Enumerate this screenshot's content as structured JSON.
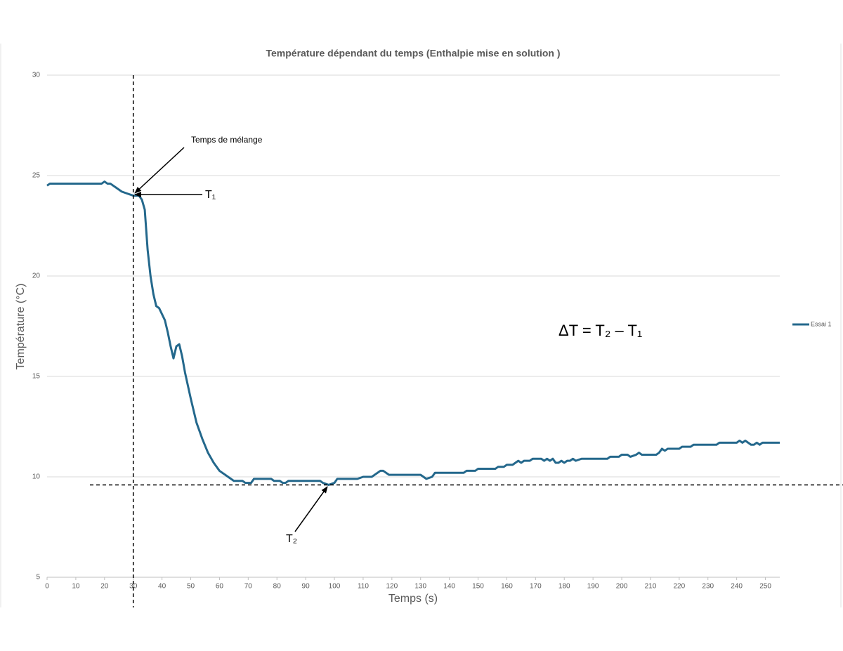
{
  "chart_data": {
    "type": "line",
    "title": "Température dépendant du temps (Enthalpie mise en solution )",
    "x_label": "Temps (s)",
    "y_label": "Température (°C)",
    "xlim": [
      0,
      255
    ],
    "ylim": [
      5,
      30
    ],
    "xticks": [
      0,
      10,
      20,
      30,
      40,
      50,
      60,
      70,
      80,
      90,
      100,
      110,
      120,
      130,
      140,
      150,
      160,
      170,
      180,
      190,
      200,
      210,
      220,
      230,
      240,
      250
    ],
    "yticks": [
      5,
      10,
      15,
      20,
      25,
      30
    ],
    "grid": true,
    "legend": "right",
    "x": [
      0,
      1,
      5,
      10,
      15,
      19,
      20,
      21,
      22,
      24,
      26,
      28,
      30,
      32,
      33,
      34,
      35,
      36,
      37,
      38,
      39,
      40,
      41,
      42,
      43,
      44,
      45,
      46,
      47,
      48,
      50,
      52,
      54,
      56,
      58,
      60,
      62,
      64,
      65,
      68,
      69,
      71,
      72,
      78,
      79,
      81,
      82,
      83,
      84,
      95,
      96,
      98,
      100,
      101,
      108,
      110,
      113,
      116,
      117,
      119,
      130,
      131,
      132,
      134,
      135,
      145,
      146,
      149,
      150,
      156,
      157,
      159,
      160,
      162,
      164,
      165,
      166,
      168,
      169,
      172,
      173,
      174,
      175,
      176,
      177,
      178,
      179,
      180,
      181,
      182,
      183,
      184,
      186,
      195,
      196,
      199,
      200,
      202,
      203,
      205,
      206,
      207,
      212,
      213,
      214,
      215,
      216,
      220,
      221,
      224,
      225,
      233,
      234,
      240,
      241,
      242,
      243,
      244,
      245,
      246,
      247,
      248,
      249,
      255
    ],
    "series": [
      {
        "name": "Essai 1",
        "color": "#24688c",
        "values": [
          24.5,
          24.6,
          24.6,
          24.6,
          24.6,
          24.6,
          24.7,
          24.6,
          24.6,
          24.4,
          24.2,
          24.1,
          24.0,
          24.0,
          23.8,
          23.3,
          21.3,
          20.0,
          19.1,
          18.5,
          18.4,
          18.1,
          17.8,
          17.2,
          16.5,
          15.9,
          16.5,
          16.6,
          16.0,
          15.2,
          13.9,
          12.7,
          11.9,
          11.2,
          10.7,
          10.3,
          10.1,
          9.9,
          9.8,
          9.8,
          9.7,
          9.7,
          9.9,
          9.9,
          9.8,
          9.8,
          9.7,
          9.7,
          9.8,
          9.8,
          9.7,
          9.6,
          9.7,
          9.9,
          9.9,
          10.0,
          10.0,
          10.3,
          10.3,
          10.1,
          10.1,
          10.0,
          9.9,
          10.0,
          10.2,
          10.2,
          10.3,
          10.3,
          10.4,
          10.4,
          10.5,
          10.5,
          10.6,
          10.6,
          10.8,
          10.7,
          10.8,
          10.8,
          10.9,
          10.9,
          10.8,
          10.9,
          10.8,
          10.9,
          10.7,
          10.7,
          10.8,
          10.7,
          10.8,
          10.8,
          10.9,
          10.8,
          10.9,
          10.9,
          11.0,
          11.0,
          11.1,
          11.1,
          11.0,
          11.1,
          11.2,
          11.1,
          11.1,
          11.2,
          11.4,
          11.3,
          11.4,
          11.4,
          11.5,
          11.5,
          11.6,
          11.6,
          11.7,
          11.7,
          11.8,
          11.7,
          11.8,
          11.7,
          11.6,
          11.6,
          11.7,
          11.6,
          11.7,
          11.7
        ]
      }
    ],
    "reference_lines": {
      "x": 30,
      "y": 9.6
    },
    "annotations": {
      "mixing": "Temps de mélange",
      "t1": "T₁",
      "t2": "T₂",
      "delta": "ΔT = T₂ – T₁"
    }
  }
}
